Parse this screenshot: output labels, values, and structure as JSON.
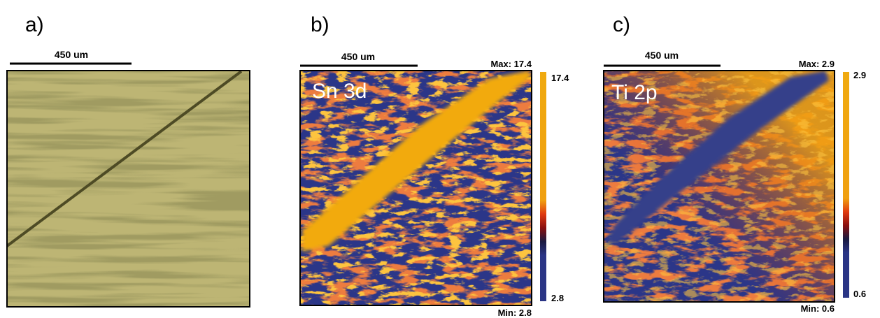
{
  "panels": [
    {
      "label": "a)",
      "scale_bar": "450 um"
    },
    {
      "label": "b)",
      "scale_bar": "450 um",
      "element": "Sn 3d",
      "max": "Max: 17.4",
      "min": "Min: 2.8",
      "colorbar_top": "17.4",
      "colorbar_bottom": "2.8"
    },
    {
      "label": "c)",
      "scale_bar": "450 um",
      "element": "Ti 2p",
      "max": "Max: 2.9",
      "min": "Min: 0.6",
      "colorbar_top": "2.9",
      "colorbar_bottom": "0.6"
    }
  ]
}
